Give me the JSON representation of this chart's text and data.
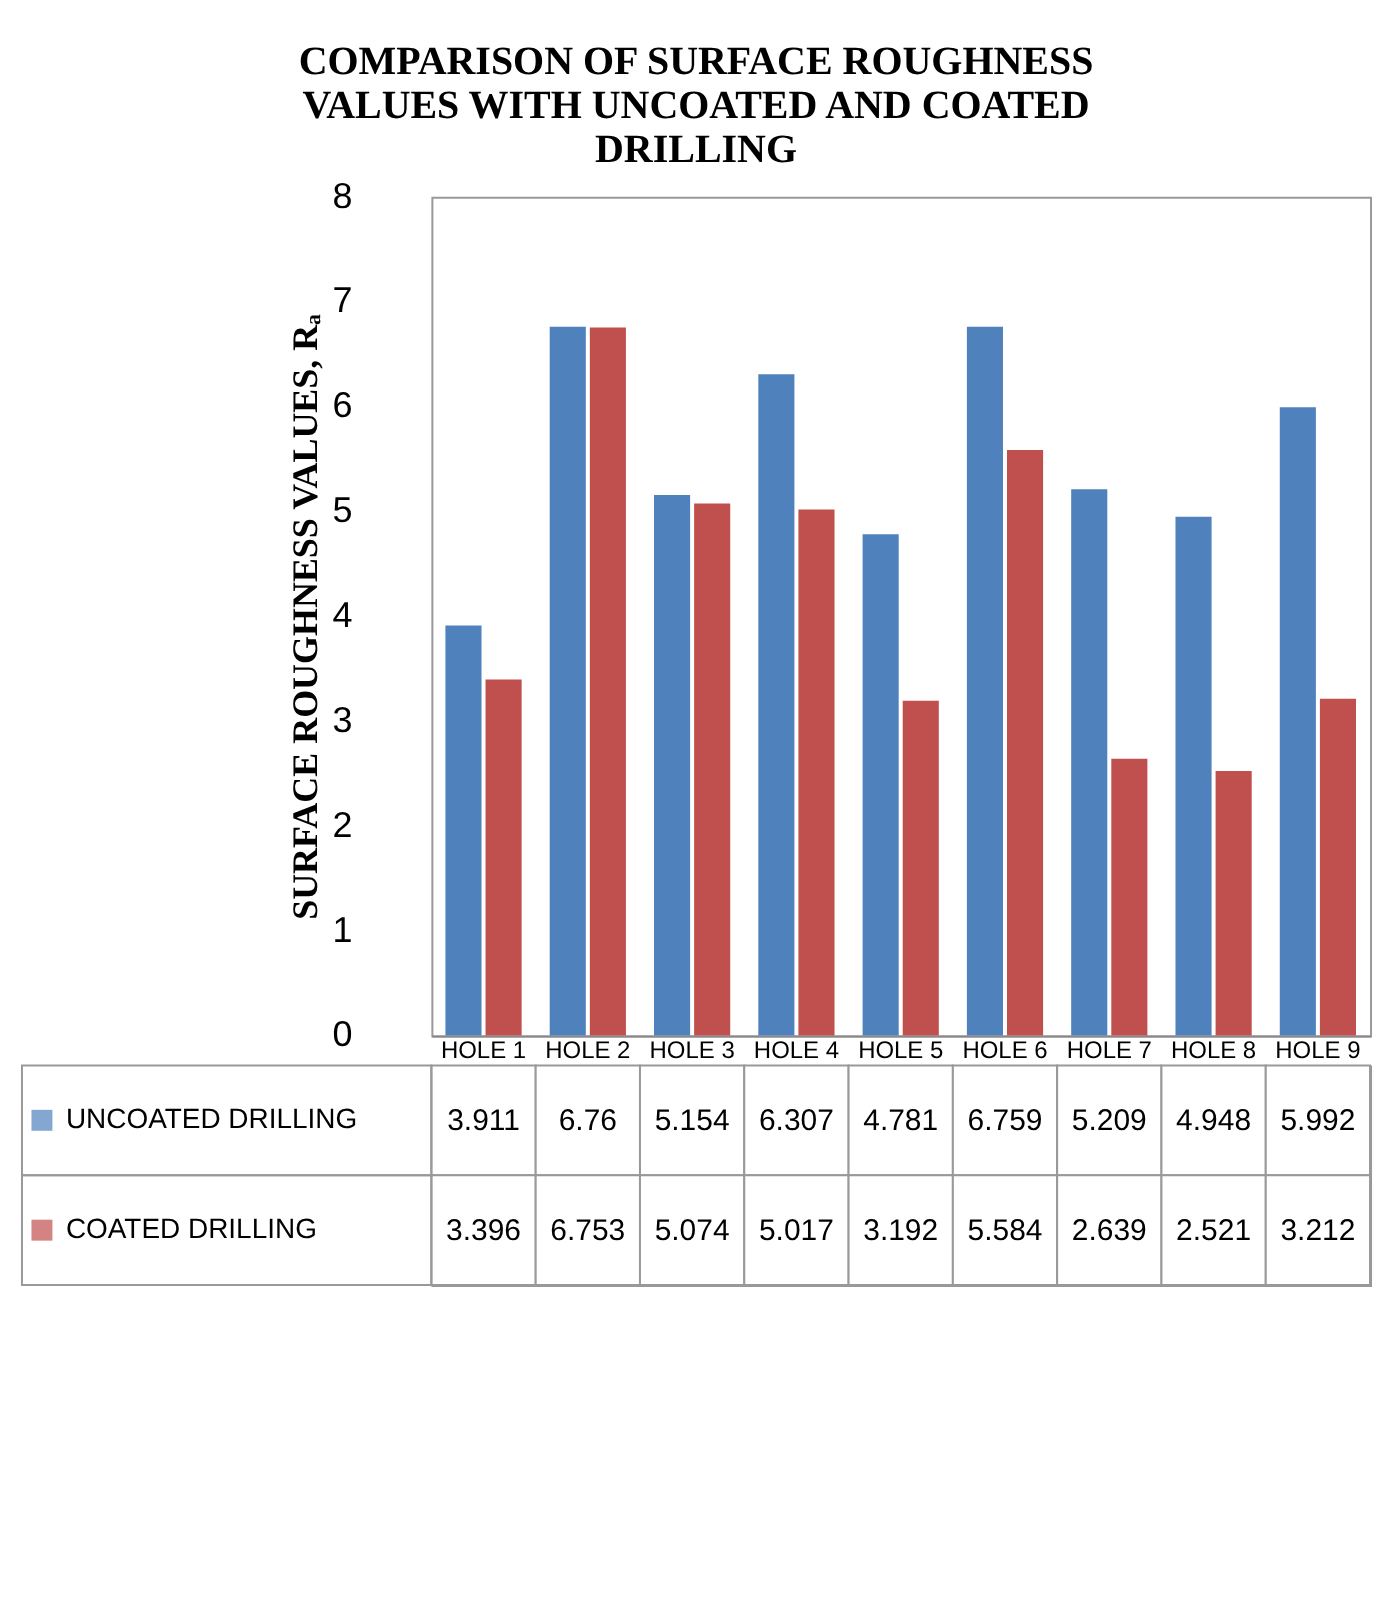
{
  "chart_data": {
    "type": "bar",
    "title": [
      "COMPARISON OF SURFACE ROUGHNESS",
      "VALUES WITH UNCOATED AND COATED",
      "DRILLING"
    ],
    "ylabel": "SURFACE  ROUGHNESS VALUES, Rₐ",
    "categories": [
      "HOLE 1",
      "HOLE 2",
      "HOLE 3",
      "HOLE 4",
      "HOLE 5",
      "HOLE 6",
      "HOLE 7",
      "HOLE 8",
      "HOLE 9"
    ],
    "series": [
      {
        "name": "UNCOATED DRILLING",
        "color": "#4f81bd",
        "values": [
          3.911,
          6.76,
          5.154,
          6.307,
          4.781,
          6.759,
          5.209,
          4.948,
          5.992
        ]
      },
      {
        "name": "COATED DRILLING",
        "color": "#c0504d",
        "values": [
          3.396,
          6.753,
          5.074,
          5.017,
          3.192,
          5.584,
          2.639,
          2.521,
          3.212
        ]
      }
    ],
    "ylim": [
      0,
      8
    ],
    "yticks": [
      0,
      1,
      2,
      3,
      4,
      5,
      6,
      7,
      8
    ],
    "grid": false,
    "legend": "bottom",
    "data_labels": true
  }
}
